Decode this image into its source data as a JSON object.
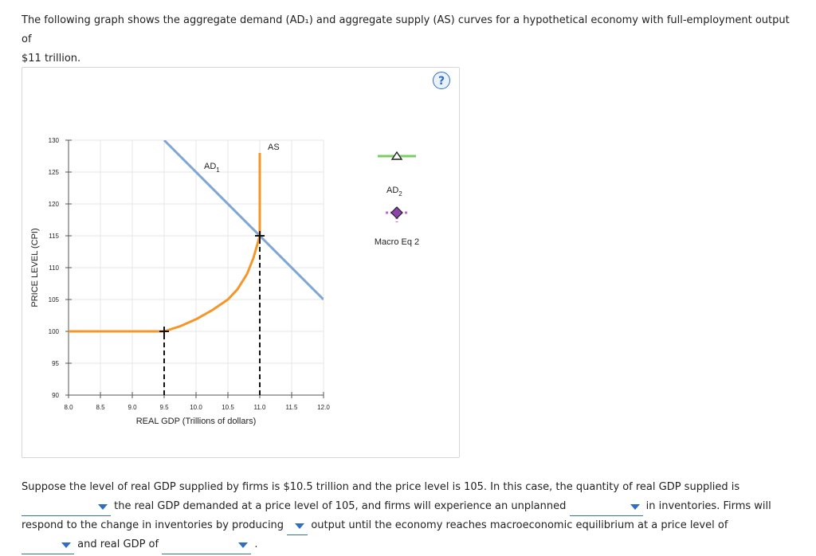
{
  "question": {
    "intro_line1": "The following graph shows the aggregate demand (AD₁) and aggregate supply (AS) curves for a hypothetical economy with full-employment output of",
    "intro_line2": "$11 trillion."
  },
  "help_label": "?",
  "chart_data": {
    "type": "line",
    "xlabel": "REAL GDP (Trillions of dollars)",
    "ylabel": "PRICE LEVEL (CPI)",
    "xlim": [
      8.0,
      12.0
    ],
    "ylim": [
      90,
      130
    ],
    "x_ticks": [
      "8.0",
      "8.5",
      "9.0",
      "9.5",
      "10.0",
      "10.5",
      "11.0",
      "11.5",
      "12.0"
    ],
    "y_ticks": [
      "90",
      "95",
      "100",
      "105",
      "110",
      "115",
      "120",
      "125",
      "130"
    ],
    "grid": true,
    "series": [
      {
        "name": "AD1",
        "label_main": "AD",
        "label_sub": "1",
        "color": "#7fa6d4",
        "points": [
          [
            9.5,
            130
          ],
          [
            12.0,
            105
          ]
        ]
      },
      {
        "name": "AS",
        "label_main": "AS",
        "label_sub": "",
        "color": "#f4962a",
        "points": [
          [
            8.0,
            100
          ],
          [
            9.5,
            100
          ],
          [
            9.75,
            100.8
          ],
          [
            10.0,
            101.9
          ],
          [
            10.25,
            103.3
          ],
          [
            10.5,
            105
          ],
          [
            10.65,
            106.6
          ],
          [
            10.8,
            109
          ],
          [
            10.9,
            111.5
          ],
          [
            11.0,
            115
          ],
          [
            11.0,
            128
          ]
        ]
      }
    ],
    "markers": [
      {
        "x": 9.5,
        "y": 100,
        "symbol": "plus"
      },
      {
        "x": 11.0,
        "y": 115,
        "symbol": "plus"
      }
    ],
    "dropdowns": [
      {
        "x": 9.5,
        "from_y": 90,
        "to_y": 100
      },
      {
        "x": 11.0,
        "from_y": 90,
        "to_y": 115
      }
    ]
  },
  "legend": {
    "ad2": {
      "label_main": "AD",
      "label_sub": "2",
      "color": "#7ccc63"
    },
    "macro_eq": {
      "label": "Macro Eq 2",
      "color": "#8e44ad"
    }
  },
  "paragraph": {
    "seg1": "Suppose the level of real GDP supplied by firms is $10.5 trillion and the price level is 105. In this case, the quantity of real GDP supplied is",
    "seg2": "the real GDP demanded at a price level of 105, and firms will experience an unplanned",
    "seg3": "in inventories. Firms will",
    "seg4": "respond to the change in inventories by producing",
    "seg5": "output until the economy reaches macroeconomic equilibrium at a price level of",
    "seg6": "and real GDP of",
    "seg7": "."
  }
}
